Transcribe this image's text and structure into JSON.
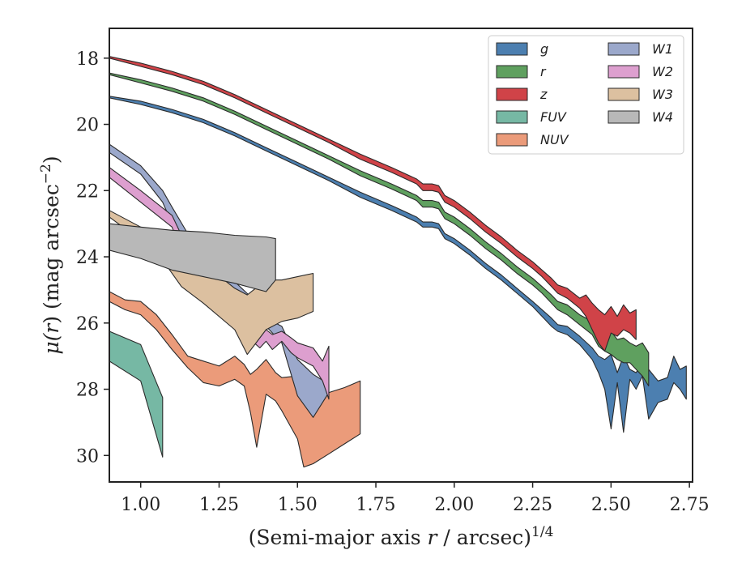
{
  "chart_data": {
    "type": "area",
    "xlabel": "(Semi-major axis r / arcsec)^1/4",
    "xlabel_parts": {
      "pre": "(Semi-major axis ",
      "var": "r",
      "mid": " / arcsec)",
      "sup": "1/4"
    },
    "ylabel": "μ(r) (mag arcsec^−2)",
    "ylabel_parts": {
      "pre": "μ(",
      "var": "r",
      "mid": ") (mag arcsec",
      "sup": "−2",
      "post": ")"
    },
    "xlim": [
      0.9,
      2.76
    ],
    "ylim": [
      30.8,
      17.1
    ],
    "y_inverted": true,
    "xticks": [
      1.0,
      1.25,
      1.5,
      1.75,
      2.0,
      2.25,
      2.5,
      2.75
    ],
    "xtick_labels": [
      "1.00",
      "1.25",
      "1.50",
      "1.75",
      "2.00",
      "2.25",
      "2.50",
      "2.75"
    ],
    "yticks": [
      18,
      20,
      22,
      24,
      26,
      28,
      30
    ],
    "ytick_labels": [
      "18",
      "20",
      "22",
      "24",
      "26",
      "28",
      "30"
    ],
    "grid": false,
    "legend_position": "top-right",
    "legend_columns": 2,
    "series": [
      {
        "name": "g",
        "color": "#4c7fb0",
        "x": [
          0.9,
          1.0,
          1.1,
          1.2,
          1.3,
          1.4,
          1.5,
          1.6,
          1.7,
          1.8,
          1.88,
          1.9,
          1.93,
          1.95,
          1.97,
          2.0,
          2.05,
          2.1,
          2.15,
          2.2,
          2.25,
          2.28,
          2.31,
          2.33,
          2.36,
          2.4,
          2.44,
          2.46,
          2.48,
          2.5,
          2.52,
          2.54,
          2.56,
          2.58,
          2.6,
          2.62,
          2.65,
          2.68,
          2.7,
          2.72,
          2.74
        ],
        "lo": [
          19.15,
          19.3,
          19.55,
          19.85,
          20.25,
          20.7,
          21.15,
          21.6,
          22.05,
          22.45,
          22.8,
          22.95,
          22.95,
          23.0,
          23.3,
          23.45,
          23.8,
          24.2,
          24.55,
          24.95,
          25.35,
          25.6,
          25.85,
          26.05,
          26.1,
          26.4,
          26.75,
          27.0,
          27.1,
          26.95,
          27.5,
          27.0,
          27.4,
          27.5,
          27.2,
          27.4,
          27.75,
          27.65,
          27.0,
          27.4,
          27.3
        ],
        "hi": [
          19.2,
          19.4,
          19.65,
          19.95,
          20.35,
          20.8,
          21.25,
          21.7,
          22.2,
          22.6,
          22.95,
          23.1,
          23.1,
          23.15,
          23.45,
          23.6,
          23.95,
          24.35,
          24.7,
          25.1,
          25.5,
          25.8,
          26.1,
          26.25,
          26.35,
          26.65,
          27.1,
          27.5,
          28.0,
          29.2,
          27.8,
          29.3,
          27.7,
          28.0,
          27.6,
          28.9,
          28.4,
          28.3,
          27.8,
          28.0,
          28.3
        ]
      },
      {
        "name": "r",
        "color": "#5fa05f",
        "x": [
          0.9,
          1.0,
          1.1,
          1.2,
          1.3,
          1.4,
          1.5,
          1.6,
          1.7,
          1.8,
          1.88,
          1.9,
          1.93,
          1.95,
          1.97,
          2.0,
          2.05,
          2.1,
          2.15,
          2.2,
          2.25,
          2.28,
          2.31,
          2.33,
          2.36,
          2.4,
          2.44,
          2.46,
          2.48,
          2.5,
          2.52,
          2.54,
          2.56,
          2.58,
          2.6,
          2.62
        ],
        "lo": [
          18.45,
          18.65,
          18.9,
          19.2,
          19.6,
          20.05,
          20.5,
          20.95,
          21.4,
          21.8,
          22.15,
          22.3,
          22.3,
          22.35,
          22.65,
          22.8,
          23.15,
          23.55,
          23.9,
          24.3,
          24.65,
          24.9,
          25.15,
          25.35,
          25.45,
          25.75,
          25.95,
          26.25,
          26.35,
          26.25,
          26.5,
          26.45,
          26.6,
          26.7,
          26.6,
          26.9
        ],
        "hi": [
          18.5,
          18.75,
          19.0,
          19.3,
          19.7,
          20.15,
          20.6,
          21.05,
          21.55,
          21.95,
          22.3,
          22.5,
          22.5,
          22.55,
          22.85,
          23.0,
          23.35,
          23.75,
          24.1,
          24.5,
          24.85,
          25.1,
          25.4,
          25.6,
          25.75,
          26.05,
          26.35,
          26.7,
          26.85,
          26.95,
          27.1,
          27.2,
          27.2,
          27.4,
          27.6,
          27.9
        ]
      },
      {
        "name": "z",
        "color": "#d04348",
        "x": [
          0.9,
          1.0,
          1.1,
          1.2,
          1.3,
          1.4,
          1.5,
          1.6,
          1.7,
          1.8,
          1.88,
          1.9,
          1.93,
          1.95,
          1.97,
          2.0,
          2.05,
          2.1,
          2.15,
          2.2,
          2.25,
          2.28,
          2.31,
          2.33,
          2.36,
          2.4,
          2.42,
          2.44,
          2.46,
          2.48,
          2.5,
          2.52,
          2.54,
          2.56,
          2.58
        ],
        "lo": [
          17.95,
          18.15,
          18.4,
          18.7,
          19.1,
          19.55,
          20.0,
          20.45,
          20.9,
          21.3,
          21.65,
          21.8,
          21.8,
          21.85,
          22.15,
          22.3,
          22.65,
          23.05,
          23.4,
          23.8,
          24.15,
          24.4,
          24.65,
          24.85,
          24.95,
          25.25,
          25.15,
          25.4,
          25.6,
          25.75,
          25.5,
          25.8,
          25.45,
          25.7,
          25.6
        ],
        "hi": [
          18.0,
          18.25,
          18.5,
          18.8,
          19.2,
          19.65,
          20.1,
          20.55,
          21.05,
          21.45,
          21.8,
          22.0,
          22.0,
          22.05,
          22.35,
          22.5,
          22.85,
          23.25,
          23.6,
          24.0,
          24.35,
          24.6,
          24.9,
          25.1,
          25.25,
          25.55,
          25.8,
          26.2,
          26.6,
          26.85,
          26.3,
          26.4,
          26.2,
          26.3,
          26.5
        ]
      },
      {
        "name": "FUV",
        "color": "#76b8a4",
        "x": [
          0.9,
          1.0,
          1.07
        ],
        "lo": [
          26.25,
          26.65,
          28.25
        ],
        "hi": [
          27.15,
          27.75,
          30.05
        ]
      },
      {
        "name": "NUV",
        "color": "#eb9b7a",
        "x": [
          0.9,
          0.95,
          1.0,
          1.05,
          1.1,
          1.15,
          1.2,
          1.25,
          1.3,
          1.33,
          1.35,
          1.37,
          1.4,
          1.43,
          1.45,
          1.5,
          1.52,
          1.55,
          1.6,
          1.65,
          1.7
        ],
        "lo": [
          25.05,
          25.3,
          25.35,
          25.75,
          26.35,
          27.0,
          27.15,
          27.3,
          27.0,
          27.25,
          27.55,
          27.4,
          27.1,
          27.5,
          27.65,
          27.6,
          28.1,
          28.05,
          28.1,
          27.95,
          27.75
        ],
        "hi": [
          25.35,
          25.6,
          25.75,
          26.2,
          26.8,
          27.35,
          27.8,
          27.9,
          27.7,
          27.9,
          28.7,
          29.75,
          28.15,
          28.35,
          28.65,
          29.5,
          30.35,
          30.25,
          29.95,
          29.65,
          29.35
        ]
      },
      {
        "name": "W1",
        "color": "#9ba8cb",
        "x": [
          0.9,
          1.0,
          1.07,
          1.1,
          1.15,
          1.2,
          1.3,
          1.35,
          1.4,
          1.45,
          1.5,
          1.55,
          1.6
        ],
        "lo": [
          20.6,
          21.25,
          22.0,
          22.5,
          23.3,
          24.2,
          24.75,
          25.2,
          25.85,
          26.1,
          27.1,
          27.55,
          27.85
        ],
        "hi": [
          20.85,
          21.5,
          22.35,
          23.0,
          23.8,
          24.8,
          25.4,
          25.75,
          26.1,
          26.6,
          28.2,
          28.85,
          28.1
        ]
      },
      {
        "name": "W2",
        "color": "#dd9fcf",
        "x": [
          0.9,
          1.0,
          1.1,
          1.15,
          1.2,
          1.3,
          1.35,
          1.38,
          1.4,
          1.42,
          1.45,
          1.48,
          1.5,
          1.55,
          1.58,
          1.6
        ],
        "lo": [
          21.3,
          22.0,
          22.75,
          23.75,
          24.3,
          25.2,
          25.6,
          26.1,
          26.2,
          26.35,
          26.25,
          26.45,
          26.6,
          26.75,
          27.15,
          26.7
        ],
        "hi": [
          21.6,
          22.35,
          23.1,
          24.3,
          24.9,
          25.9,
          26.5,
          26.75,
          26.55,
          26.8,
          26.55,
          26.9,
          27.05,
          27.3,
          27.75,
          28.3
        ]
      },
      {
        "name": "W3",
        "color": "#dcc0a0",
        "x": [
          0.9,
          1.0,
          1.07,
          1.13,
          1.2,
          1.3,
          1.34,
          1.4,
          1.45,
          1.5,
          1.55
        ],
        "lo": [
          22.6,
          23.1,
          23.5,
          23.75,
          24.2,
          24.95,
          25.15,
          24.7,
          24.7,
          24.6,
          24.5
        ],
        "hi": [
          22.8,
          23.5,
          24.1,
          24.9,
          25.4,
          26.2,
          26.95,
          26.2,
          25.95,
          25.85,
          25.65
        ]
      },
      {
        "name": "W4",
        "color": "#b8b8b8",
        "x": [
          0.9,
          1.0,
          1.1,
          1.2,
          1.3,
          1.4,
          1.43
        ],
        "lo": [
          23.0,
          23.1,
          23.2,
          23.25,
          23.35,
          23.4,
          23.45
        ],
        "hi": [
          23.8,
          24.05,
          24.4,
          24.6,
          24.8,
          25.05,
          24.7
        ]
      }
    ]
  }
}
